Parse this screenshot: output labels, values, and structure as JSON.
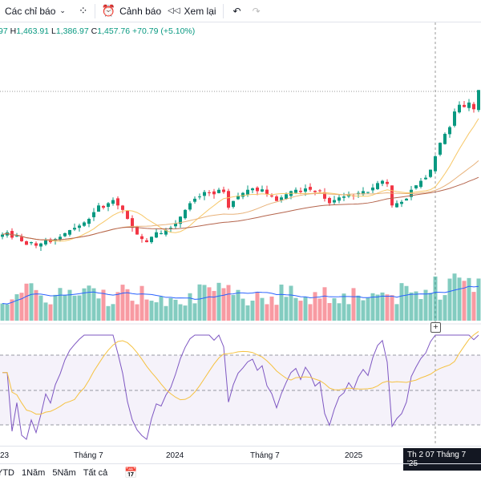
{
  "toolbar": {
    "indicators": "Các chỉ báo",
    "alert": "Cảnh báo",
    "replay": "Xem lại"
  },
  "ohlc": {
    "open_tail": "97",
    "h_label": "H",
    "high": "1,463.91",
    "l_label": "L",
    "low": "1,386.97",
    "c_label": "C",
    "close": "1,457.76",
    "change": "+70.79 (+5.10%)"
  },
  "time_axis": {
    "labels": [
      "23",
      "Tháng 7",
      "2024",
      "Tháng 7",
      "2025"
    ],
    "cursor": "Th 2 07 Tháng 7 '25"
  },
  "ranges": [
    "YTD",
    "1Năm",
    "5Năm",
    "Tất cả"
  ],
  "colors": {
    "up": "#089981",
    "down": "#f23645",
    "ma_short": "#f7c766",
    "ma_long": "#b5654d",
    "volume_ma": "#2962ff",
    "rsi": "#7e57c2",
    "rsi_ma": "#f5c242"
  },
  "chart_data": {
    "type": "candlestick",
    "closes": [
      1135,
      1140,
      1128,
      1132,
      1120,
      1112,
      1118,
      1110,
      1115,
      1122,
      1118,
      1125,
      1130,
      1138,
      1145,
      1150,
      1155,
      1162,
      1170,
      1185,
      1200,
      1195,
      1205,
      1212,
      1200,
      1190,
      1170,
      1150,
      1135,
      1125,
      1118,
      1130,
      1140,
      1138,
      1145,
      1150,
      1160,
      1175,
      1190,
      1205,
      1215,
      1220,
      1230,
      1228,
      1225,
      1235,
      1230,
      1195,
      1210,
      1222,
      1228,
      1235,
      1238,
      1232,
      1236,
      1225,
      1220,
      1210,
      1218,
      1225,
      1232,
      1235,
      1230,
      1238,
      1235,
      1230,
      1232,
      1215,
      1205,
      1212,
      1218,
      1220,
      1225,
      1222,
      1228,
      1232,
      1230,
      1240,
      1250,
      1255,
      1248,
      1200,
      1205,
      1208,
      1215,
      1235,
      1245,
      1255,
      1262,
      1280,
      1310,
      1340,
      1360,
      1375,
      1410,
      1425,
      1420,
      1430,
      1415,
      1458
    ],
    "price_range": [
      1050,
      1480
    ],
    "rsi_levels": [
      70,
      50,
      30
    ]
  }
}
